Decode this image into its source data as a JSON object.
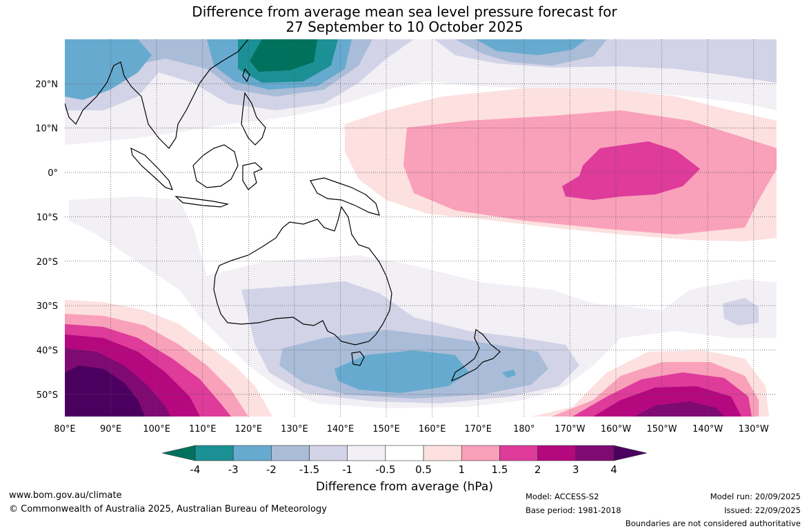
{
  "title": {
    "line1": "Difference from average mean sea level pressure forecast for",
    "line2": "27 September to 10 October 2025"
  },
  "map": {
    "lon_range": [
      80,
      235
    ],
    "lat_range": [
      -55,
      30
    ],
    "lat_labels": [
      "20°N",
      "10°N",
      "0°",
      "10°S",
      "20°S",
      "30°S",
      "40°S",
      "50°S"
    ],
    "lat_values": [
      20,
      10,
      0,
      -10,
      -20,
      -30,
      -40,
      -50
    ],
    "lon_labels": [
      "80°E",
      "90°E",
      "100°E",
      "110°E",
      "120°E",
      "130°E",
      "140°E",
      "150°E",
      "160°E",
      "170°E",
      "180°",
      "170°W",
      "160°W",
      "150°W",
      "140°W",
      "130°W"
    ],
    "lon_values": [
      80,
      90,
      100,
      110,
      120,
      130,
      140,
      150,
      160,
      170,
      180,
      190,
      200,
      210,
      220,
      230
    ],
    "grid": "dotted"
  },
  "colorbar": {
    "title": "Difference from average (hPa)",
    "ticks": [
      "-4",
      "-3",
      "-2",
      "-1.5",
      "-1",
      "-0.5",
      "0.5",
      "1",
      "1.5",
      "2",
      "3",
      "4"
    ],
    "colors": [
      "#00715c",
      "#1b9095",
      "#67aacf",
      "#a9bcd8",
      "#d2d3e6",
      "#f2eff5",
      "#ffffff",
      "#fde0e0",
      "#f9a0ba",
      "#de3b9a",
      "#b5087f",
      "#7e0a72",
      "#4b0060"
    ]
  },
  "footer": {
    "website": "www.bom.gov.au/climate",
    "copyright": "© Commonwealth of Australia 2025, Australian Bureau of Meteorology",
    "model": "Model: ACCESS-S2",
    "base_period": "Base period: 1981-2018",
    "model_run": "Model run: 20/09/2025",
    "issued": "Issued: 22/09/2025",
    "disclaimer": "Boundaries are not considered authoritative"
  }
}
